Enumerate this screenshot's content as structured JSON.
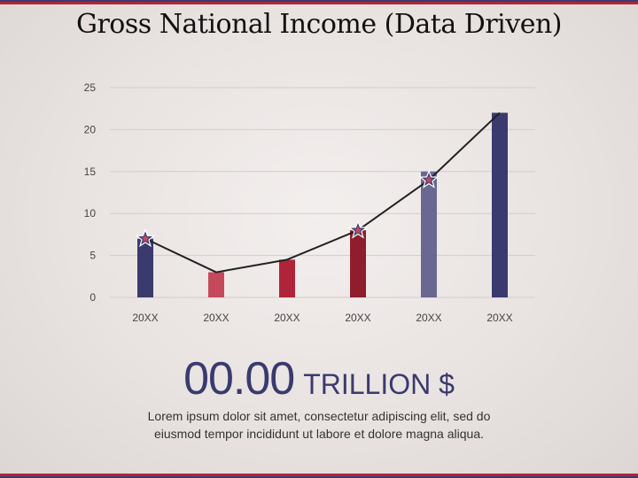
{
  "page": {
    "title": "Gross National Income (Data Driven)",
    "value_number": "00.00",
    "value_unit": "TRILLION $",
    "caption": "Lorem ipsum dolor sit amet, consectetur adipiscing elit, sed do eiusmod tempor incididunt ut labore et dolore magna aliqua."
  },
  "colors": {
    "navy": "#3b3a6e",
    "pink": "#c6485b",
    "red": "#b0243a",
    "maroon": "#8f1d2c",
    "slate": "#6a6890",
    "line": "#222222",
    "star_fill": "#3b3a6e",
    "star_center": "#c6485b"
  },
  "chart_data": {
    "type": "bar",
    "categories": [
      "20XX",
      "20XX",
      "20XX",
      "20XX",
      "20XX",
      "20XX"
    ],
    "values": [
      7,
      3,
      4.5,
      8,
      15,
      22
    ],
    "bar_colors": [
      "#3b3a6e",
      "#c6485b",
      "#b0243a",
      "#8f1d2c",
      "#6a6890",
      "#3b3a6e"
    ],
    "line_values": [
      7,
      3,
      4.5,
      8,
      14,
      22
    ],
    "star_markers": [
      0,
      3,
      4
    ],
    "ylim": [
      0,
      25
    ],
    "yticks": [
      0,
      5,
      10,
      15,
      20,
      25
    ],
    "grid": true,
    "legend": "none"
  }
}
